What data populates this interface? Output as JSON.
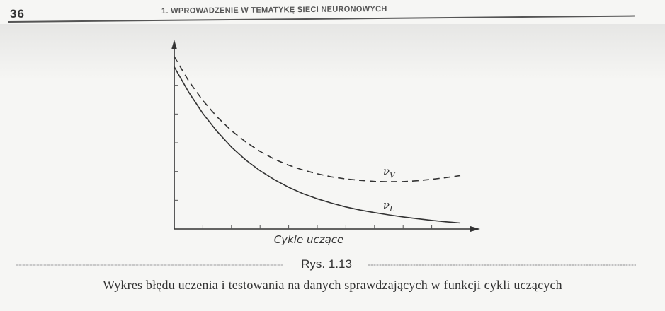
{
  "page": {
    "number": "36",
    "running_head": "1. WPROWADZENIE W TEMATYKĘ SIECI NEURONOWYCH"
  },
  "figure": {
    "label": "Rys. 1.13",
    "caption": "Wykres błędu uczenia i testowania na danych sprawdzających w funkcji cykli uczących"
  },
  "chart_data": {
    "type": "line",
    "xlabel": "Cykle uczące",
    "ylabel": "",
    "xlim": [
      0,
      10
    ],
    "ylim": [
      0,
      10
    ],
    "grid": false,
    "x_ticks": 9,
    "y_ticks": 5,
    "series": [
      {
        "name": "ν_V",
        "style": "dashed",
        "x": [
          0,
          0.5,
          1,
          1.5,
          2,
          2.5,
          3,
          3.5,
          4,
          4.5,
          5,
          5.5,
          6,
          6.5,
          7,
          7.5,
          8,
          8.5,
          9,
          9.5,
          10
        ],
        "y": [
          10.0,
          8.6,
          7.45,
          6.5,
          5.7,
          5.05,
          4.5,
          4.05,
          3.7,
          3.42,
          3.2,
          3.02,
          2.9,
          2.82,
          2.76,
          2.74,
          2.75,
          2.8,
          2.88,
          2.98,
          3.1
        ]
      },
      {
        "name": "ν_L",
        "style": "solid",
        "x": [
          0,
          0.5,
          1,
          1.5,
          2,
          2.5,
          3,
          3.5,
          4,
          4.5,
          5,
          5.5,
          6,
          6.5,
          7,
          7.5,
          8,
          8.5,
          9,
          9.5,
          10
        ],
        "y": [
          9.4,
          7.95,
          6.7,
          5.65,
          4.75,
          4.0,
          3.38,
          2.86,
          2.42,
          2.05,
          1.75,
          1.5,
          1.28,
          1.1,
          0.95,
          0.82,
          0.7,
          0.6,
          0.5,
          0.42,
          0.35
        ]
      }
    ],
    "labels": [
      {
        "series": 0,
        "text": "ν",
        "sub": "V"
      },
      {
        "series": 1,
        "text": "ν",
        "sub": "L"
      }
    ]
  }
}
